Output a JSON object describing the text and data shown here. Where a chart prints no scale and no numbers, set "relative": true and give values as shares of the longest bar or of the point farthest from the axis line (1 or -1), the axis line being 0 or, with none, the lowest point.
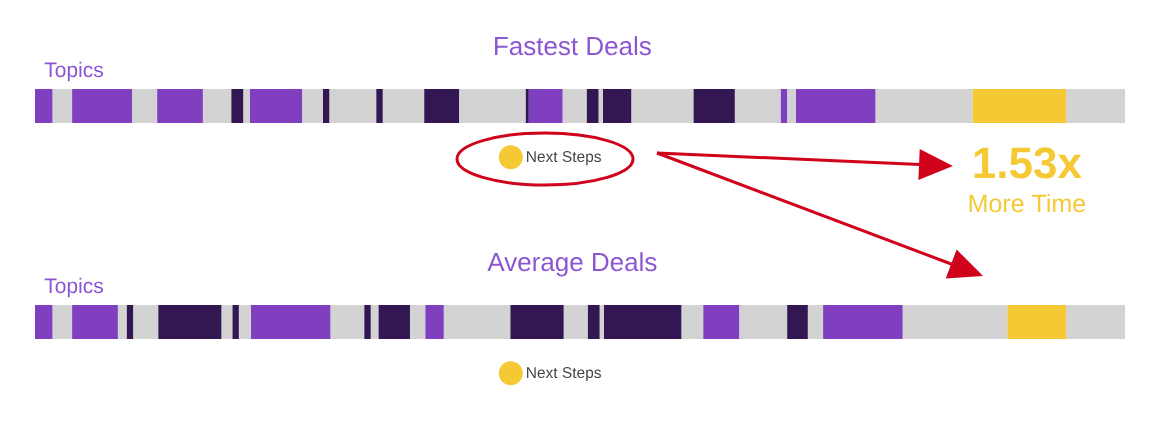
{
  "chart_data": [
    {
      "type": "bar",
      "orientation": "horizontal",
      "stacked": true,
      "relative": true,
      "title": "Fastest Deals",
      "categories": [
        "Topics"
      ],
      "legend": "bottom",
      "annotations": [
        "1.53x",
        "More Time"
      ],
      "series": [
        {
          "color": "#7f3fbf",
          "values": [
            0.016
          ]
        },
        {
          "color": "#d3d3d3",
          "values": [
            0.018
          ]
        },
        {
          "color": "#7f3fbf",
          "values": [
            0.055
          ]
        },
        {
          "color": "#d3d3d3",
          "values": [
            0.023
          ]
        },
        {
          "color": "#7f3fbf",
          "values": [
            0.042
          ]
        },
        {
          "color": "#d3d3d3",
          "values": [
            0.026
          ]
        },
        {
          "color": "#321752",
          "values": [
            0.011
          ]
        },
        {
          "color": "#d3d3d3",
          "values": [
            0.006
          ]
        },
        {
          "color": "#7f3fbf",
          "values": [
            0.048
          ]
        },
        {
          "color": "#d3d3d3",
          "values": [
            0.019
          ]
        },
        {
          "color": "#321752",
          "values": [
            0.006
          ]
        },
        {
          "color": "#d3d3d3",
          "values": [
            0.043
          ]
        },
        {
          "color": "#321752",
          "values": [
            0.006
          ]
        },
        {
          "color": "#d3d3d3",
          "values": [
            0.038
          ]
        },
        {
          "color": "#321752",
          "values": [
            0.032
          ]
        },
        {
          "color": "#d3d3d3",
          "values": [
            0.061
          ]
        },
        {
          "color": "#321752",
          "values": [
            0.003
          ]
        },
        {
          "color": "#7f3fbf",
          "values": [
            0.031
          ]
        },
        {
          "color": "#d3d3d3",
          "values": [
            0.022
          ]
        },
        {
          "color": "#321752",
          "values": [
            0.011
          ]
        },
        {
          "color": "#d3d3d3",
          "values": [
            0.004
          ]
        },
        {
          "color": "#321752",
          "values": [
            0.026
          ]
        },
        {
          "color": "#d3d3d3",
          "values": [
            0.057
          ]
        },
        {
          "color": "#321752",
          "values": [
            0.038
          ]
        },
        {
          "color": "#d3d3d3",
          "values": [
            0.042
          ]
        },
        {
          "color": "#7f3fbf",
          "values": [
            0.006
          ]
        },
        {
          "color": "#d3d3d3",
          "values": [
            0.008
          ]
        },
        {
          "color": "#7f3fbf",
          "values": [
            0.073
          ]
        },
        {
          "color": "#d3d3d3",
          "values": [
            0.089
          ]
        },
        {
          "name": "Next Steps",
          "color": "#f4c933",
          "values": [
            0.086
          ]
        },
        {
          "color": "#d3d3d3",
          "values": [
            0.054
          ]
        }
      ]
    },
    {
      "type": "bar",
      "orientation": "horizontal",
      "stacked": true,
      "relative": true,
      "title": "Average Deals",
      "categories": [
        "Topics"
      ],
      "legend": "bottom",
      "series": [
        {
          "color": "#7f3fbf",
          "values": [
            0.016
          ]
        },
        {
          "color": "#d3d3d3",
          "values": [
            0.018
          ]
        },
        {
          "color": "#7f3fbf",
          "values": [
            0.042
          ]
        },
        {
          "color": "#d3d3d3",
          "values": [
            0.008
          ]
        },
        {
          "color": "#321752",
          "values": [
            0.006
          ]
        },
        {
          "color": "#d3d3d3",
          "values": [
            0.023
          ]
        },
        {
          "color": "#321752",
          "values": [
            0.058
          ]
        },
        {
          "color": "#d3d3d3",
          "values": [
            0.01
          ]
        },
        {
          "color": "#321752",
          "values": [
            0.006
          ]
        },
        {
          "color": "#d3d3d3",
          "values": [
            0.011
          ]
        },
        {
          "color": "#7f3fbf",
          "values": [
            0.073
          ]
        },
        {
          "color": "#d3d3d3",
          "values": [
            0.031
          ]
        },
        {
          "color": "#321752",
          "values": [
            0.006
          ]
        },
        {
          "color": "#d3d3d3",
          "values": [
            0.007
          ]
        },
        {
          "color": "#321752",
          "values": [
            0.029
          ]
        },
        {
          "color": "#d3d3d3",
          "values": [
            0.014
          ]
        },
        {
          "color": "#7f3fbf",
          "values": [
            0.017
          ]
        },
        {
          "color": "#d3d3d3",
          "values": [
            0.061
          ]
        },
        {
          "color": "#321752",
          "values": [
            0.049
          ]
        },
        {
          "color": "#d3d3d3",
          "values": [
            0.022
          ]
        },
        {
          "color": "#321752",
          "values": [
            0.011
          ]
        },
        {
          "color": "#d3d3d3",
          "values": [
            0.004
          ]
        },
        {
          "color": "#321752",
          "values": [
            0.071
          ]
        },
        {
          "color": "#d3d3d3",
          "values": [
            0.02
          ]
        },
        {
          "color": "#7f3fbf",
          "values": [
            0.033
          ]
        },
        {
          "color": "#d3d3d3",
          "values": [
            0.044
          ]
        },
        {
          "color": "#321752",
          "values": [
            0.019
          ]
        },
        {
          "color": "#d3d3d3",
          "values": [
            0.014
          ]
        },
        {
          "color": "#7f3fbf",
          "values": [
            0.073
          ]
        },
        {
          "color": "#d3d3d3",
          "values": [
            0.096
          ]
        },
        {
          "name": "Next Steps",
          "color": "#f4c933",
          "values": [
            0.054
          ]
        },
        {
          "color": "#d3d3d3",
          "values": [
            0.054
          ]
        }
      ]
    }
  ]
}
